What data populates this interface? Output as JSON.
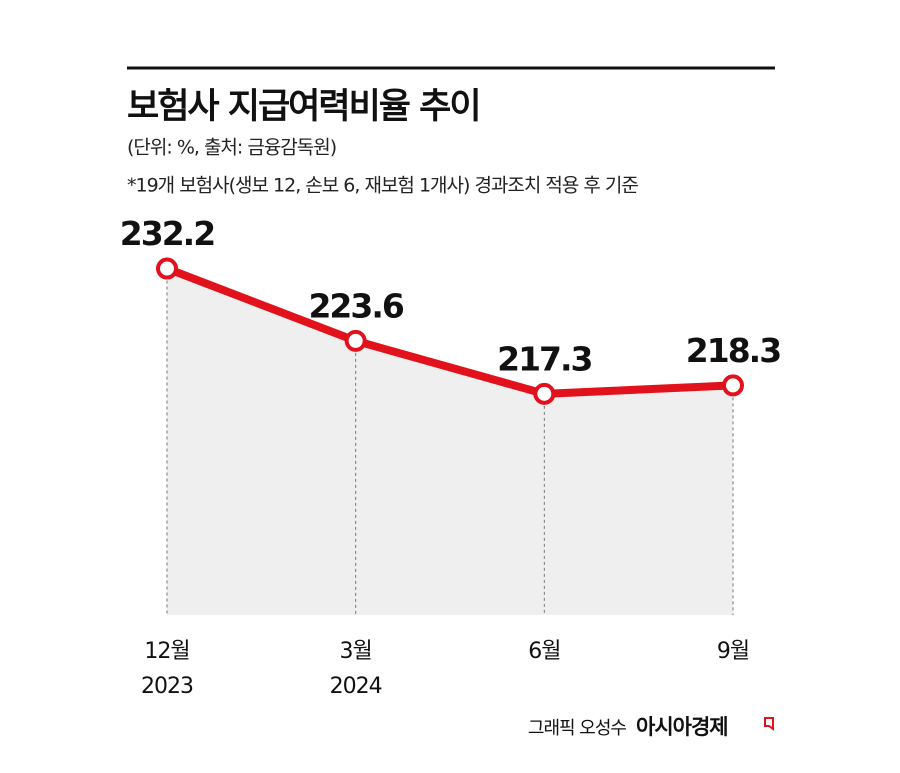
{
  "chart_data": {
    "type": "line",
    "title": "보험사 지급여력비율 추이",
    "subtitle": "(단위: %, 출처: 금융감독원)",
    "note": "*19개 보험사(생보 12, 손보 6, 재보험 1개사) 경과조치 적용 후 기준",
    "categories": [
      "12월",
      "3월",
      "6월",
      "9월"
    ],
    "category_years": [
      "2023",
      "2024",
      null,
      null
    ],
    "values": [
      232.2,
      223.6,
      217.3,
      218.3
    ],
    "color": "#e1121b",
    "area_color": "#efefef",
    "ylim": [
      191,
      235
    ],
    "credit": "그래픽 오성수",
    "brand": "아시아경제"
  }
}
